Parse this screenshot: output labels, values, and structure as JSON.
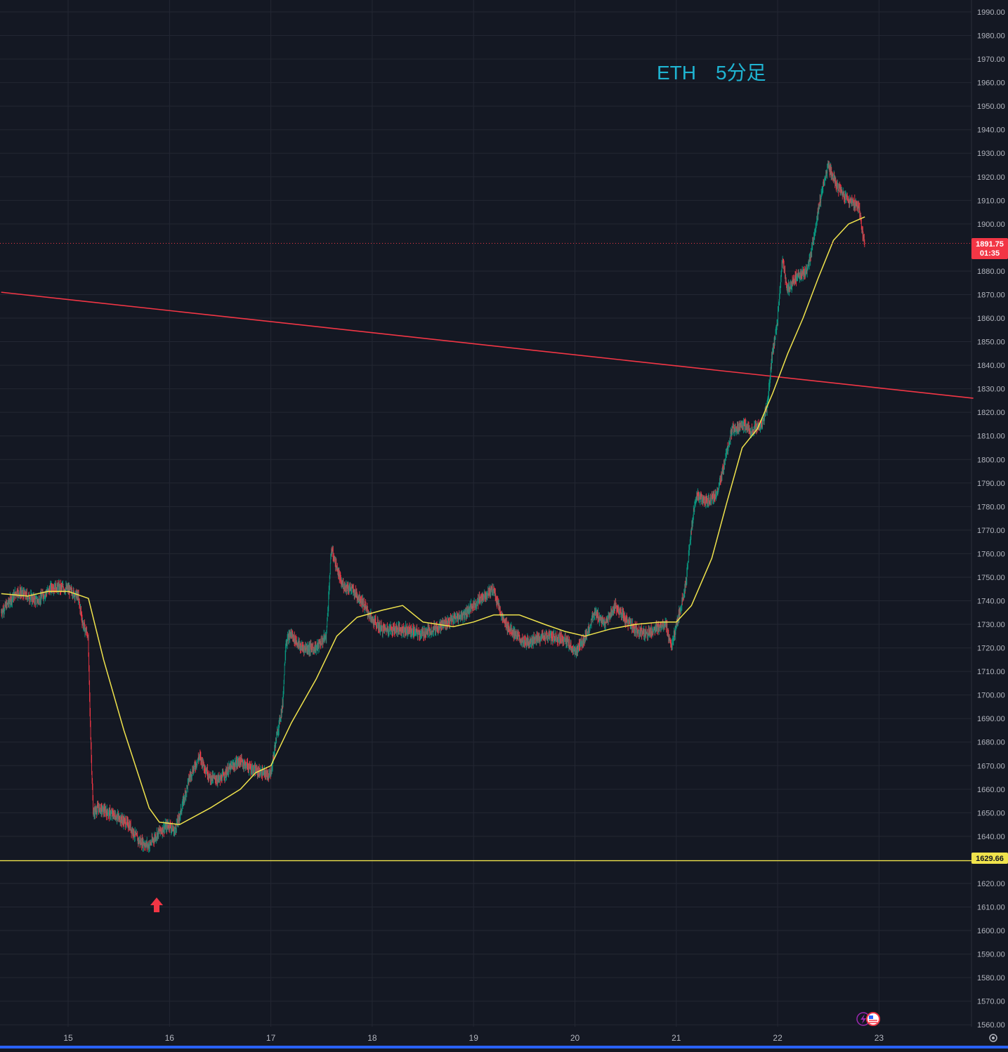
{
  "chart_data": {
    "type": "candlestick",
    "title": "ETH　5分足",
    "ylim": [
      1555,
      1995
    ],
    "y_ticks": [
      "1990.00",
      "1980.00",
      "1970.00",
      "1960.00",
      "1950.00",
      "1940.00",
      "1930.00",
      "1920.00",
      "1910.00",
      "1900.00",
      "1880.00",
      "1870.00",
      "1860.00",
      "1850.00",
      "1840.00",
      "1830.00",
      "1820.00",
      "1810.00",
      "1800.00",
      "1790.00",
      "1780.00",
      "1770.00",
      "1760.00",
      "1750.00",
      "1740.00",
      "1730.00",
      "1720.00",
      "1710.00",
      "1700.00",
      "1690.00",
      "1680.00",
      "1670.00",
      "1660.00",
      "1650.00",
      "1640.00",
      "1620.00",
      "1610.00",
      "1600.00",
      "1590.00",
      "1580.00",
      "1570.00",
      "1560.00"
    ],
    "x_ticks": [
      "15",
      "16",
      "17",
      "18",
      "19",
      "20",
      "21",
      "22",
      "23"
    ],
    "grid": true,
    "current_price": {
      "label": "1891.75",
      "countdown": "01:35",
      "value": 1891.75,
      "color": "#f23645"
    },
    "support_level": {
      "label": "1629.66",
      "value": 1629.66,
      "color": "#f0e34c"
    },
    "trendline": {
      "color": "#f23645",
      "from": {
        "day": 14.34,
        "price": 1871
      },
      "to": {
        "day": 23.93,
        "price": 1826
      }
    },
    "moving_average": {
      "color": "#f0e34c",
      "points": [
        [
          14.34,
          1743
        ],
        [
          14.6,
          1742
        ],
        [
          14.8,
          1744
        ],
        [
          15.0,
          1744
        ],
        [
          15.2,
          1741
        ],
        [
          15.35,
          1715
        ],
        [
          15.55,
          1685
        ],
        [
          15.8,
          1652
        ],
        [
          15.9,
          1646
        ],
        [
          16.1,
          1645
        ],
        [
          16.4,
          1652
        ],
        [
          16.7,
          1660
        ],
        [
          16.85,
          1667
        ],
        [
          17.0,
          1670
        ],
        [
          17.2,
          1688
        ],
        [
          17.45,
          1707
        ],
        [
          17.65,
          1725
        ],
        [
          17.85,
          1733
        ],
        [
          18.1,
          1736
        ],
        [
          18.3,
          1738
        ],
        [
          18.5,
          1731
        ],
        [
          18.8,
          1729
        ],
        [
          19.0,
          1731
        ],
        [
          19.2,
          1734
        ],
        [
          19.45,
          1734
        ],
        [
          19.7,
          1730
        ],
        [
          19.9,
          1727
        ],
        [
          20.1,
          1725
        ],
        [
          20.35,
          1728
        ],
        [
          20.6,
          1730
        ],
        [
          20.85,
          1731
        ],
        [
          21.0,
          1731
        ],
        [
          21.15,
          1738
        ],
        [
          21.35,
          1758
        ],
        [
          21.5,
          1782
        ],
        [
          21.65,
          1805
        ],
        [
          21.8,
          1813
        ],
        [
          21.95,
          1828
        ],
        [
          22.1,
          1845
        ],
        [
          22.25,
          1860
        ],
        [
          22.4,
          1877
        ],
        [
          22.55,
          1893
        ],
        [
          22.7,
          1900
        ],
        [
          22.86,
          1903
        ]
      ]
    },
    "price_path": [
      [
        14.34,
        1735
      ],
      [
        14.5,
        1744
      ],
      [
        14.7,
        1740
      ],
      [
        14.85,
        1746
      ],
      [
        15.0,
        1745
      ],
      [
        15.1,
        1742
      ],
      [
        15.15,
        1730
      ],
      [
        15.2,
        1725
      ],
      [
        15.22,
        1690
      ],
      [
        15.25,
        1650
      ],
      [
        15.3,
        1652
      ],
      [
        15.4,
        1650
      ],
      [
        15.5,
        1648
      ],
      [
        15.6,
        1645
      ],
      [
        15.7,
        1638
      ],
      [
        15.8,
        1636
      ],
      [
        15.9,
        1642
      ],
      [
        16.0,
        1645
      ],
      [
        16.05,
        1642
      ],
      [
        16.1,
        1648
      ],
      [
        16.2,
        1665
      ],
      [
        16.3,
        1674
      ],
      [
        16.4,
        1665
      ],
      [
        16.5,
        1664
      ],
      [
        16.6,
        1669
      ],
      [
        16.7,
        1672
      ],
      [
        16.8,
        1669
      ],
      [
        16.9,
        1667
      ],
      [
        17.0,
        1666
      ],
      [
        17.05,
        1680
      ],
      [
        17.12,
        1696
      ],
      [
        17.15,
        1722
      ],
      [
        17.2,
        1726
      ],
      [
        17.3,
        1720
      ],
      [
        17.45,
        1720
      ],
      [
        17.55,
        1725
      ],
      [
        17.6,
        1762
      ],
      [
        17.7,
        1747
      ],
      [
        17.8,
        1745
      ],
      [
        17.9,
        1740
      ],
      [
        18.0,
        1732
      ],
      [
        18.1,
        1728
      ],
      [
        18.3,
        1728
      ],
      [
        18.5,
        1726
      ],
      [
        18.7,
        1730
      ],
      [
        18.9,
        1734
      ],
      [
        19.1,
        1742
      ],
      [
        19.2,
        1745
      ],
      [
        19.3,
        1731
      ],
      [
        19.5,
        1722
      ],
      [
        19.7,
        1725
      ],
      [
        19.9,
        1724
      ],
      [
        20.0,
        1718
      ],
      [
        20.1,
        1724
      ],
      [
        20.2,
        1735
      ],
      [
        20.3,
        1730
      ],
      [
        20.4,
        1738
      ],
      [
        20.5,
        1732
      ],
      [
        20.6,
        1728
      ],
      [
        20.7,
        1726
      ],
      [
        20.8,
        1728
      ],
      [
        20.9,
        1731
      ],
      [
        20.95,
        1720
      ],
      [
        21.0,
        1728
      ],
      [
        21.1,
        1748
      ],
      [
        21.15,
        1770
      ],
      [
        21.2,
        1785
      ],
      [
        21.3,
        1782
      ],
      [
        21.4,
        1785
      ],
      [
        21.45,
        1793
      ],
      [
        21.55,
        1812
      ],
      [
        21.65,
        1815
      ],
      [
        21.75,
        1812
      ],
      [
        21.85,
        1815
      ],
      [
        21.9,
        1822
      ],
      [
        21.95,
        1845
      ],
      [
        22.0,
        1858
      ],
      [
        22.05,
        1885
      ],
      [
        22.1,
        1872
      ],
      [
        22.2,
        1878
      ],
      [
        22.3,
        1880
      ],
      [
        22.35,
        1892
      ],
      [
        22.4,
        1905
      ],
      [
        22.5,
        1925
      ],
      [
        22.6,
        1915
      ],
      [
        22.7,
        1910
      ],
      [
        22.8,
        1908
      ],
      [
        22.86,
        1891.75
      ]
    ]
  },
  "markers": {
    "arrow_up_color": "#f23645"
  },
  "colors": {
    "background": "#141823",
    "grid": "#232733",
    "up": "#089981",
    "down": "#f23645"
  }
}
